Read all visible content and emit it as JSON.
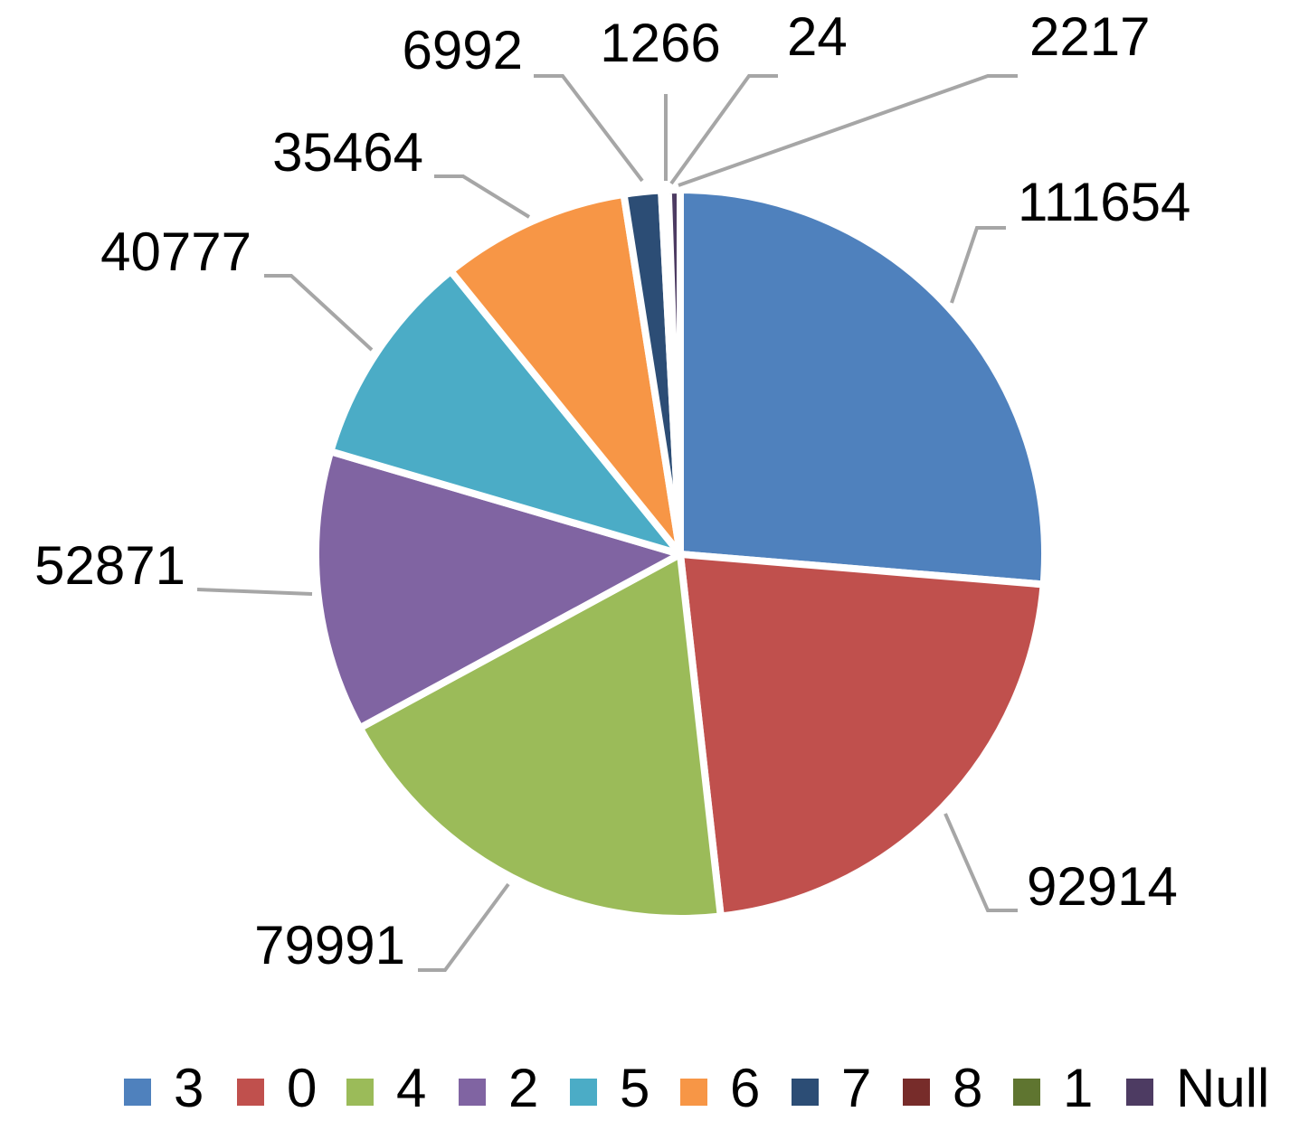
{
  "chart_data": {
    "type": "pie",
    "categories": [
      "3",
      "0",
      "4",
      "2",
      "5",
      "6",
      "7",
      "8",
      "1",
      "Null"
    ],
    "values": [
      111654,
      92914,
      79991,
      52871,
      40777,
      35464,
      6992,
      1266,
      24,
      2217
    ],
    "colors": [
      "#4f81bd",
      "#c0504d",
      "#9bbb59",
      "#8064a2",
      "#4bacc6",
      "#f79646",
      "#2c4d75",
      "#772c2a",
      "#5f7530",
      "#4d3b62"
    ],
    "legend": "bottom"
  }
}
